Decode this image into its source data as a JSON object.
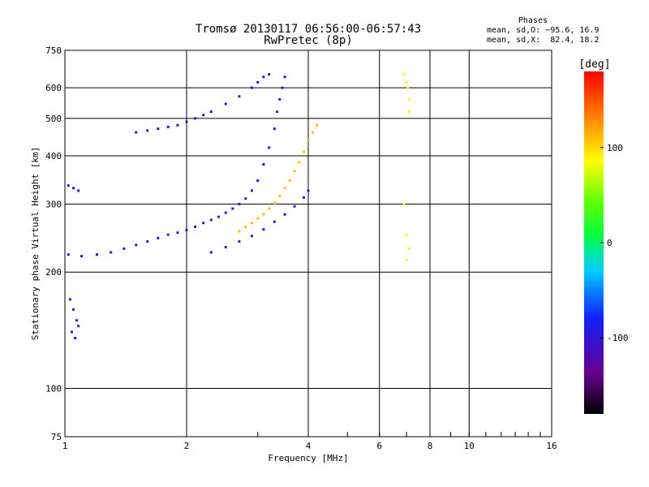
{
  "header": {
    "title": "Tromsø 20130117 06:56:00-06:57:43",
    "subtitle": "RwPretec (8p)"
  },
  "stats": {
    "heading": "Phases",
    "line_o": "mean, sd,O: −95.6, 16.9",
    "line_x": "mean, sd,X:  82.4, 18.2"
  },
  "chart_data": {
    "type": "scatter",
    "xlabel": "Frequency [MHz]",
    "ylabel": "Stationary phase Virtual Height [km]",
    "xscale": "log",
    "yscale": "log",
    "xlim": [
      1,
      16
    ],
    "ylim": [
      75,
      750
    ],
    "x_ticks": [
      1,
      2,
      4,
      6,
      8,
      10,
      16
    ],
    "x_tick_labels": [
      "1",
      "2",
      "4",
      "6",
      "8",
      "10",
      "16"
    ],
    "y_ticks": [
      75,
      100,
      200,
      300,
      400,
      500,
      600,
      750
    ],
    "y_tick_labels": [
      "75",
      "100",
      "200",
      "300",
      "400",
      "500",
      "600",
      "750"
    ],
    "grid": true,
    "colorbar": {
      "label": "[deg]",
      "range": [
        -180,
        180
      ],
      "ticks": [
        100,
        0,
        -100
      ],
      "tick_labels": [
        "100",
        "0",
        "-100"
      ]
    },
    "series": [
      {
        "note_color_deg": -100,
        "points": [
          [
            1.02,
            222
          ],
          [
            1.1,
            220
          ],
          [
            1.2,
            222
          ],
          [
            1.3,
            225
          ],
          [
            1.4,
            230
          ],
          [
            1.5,
            235
          ],
          [
            1.6,
            240
          ],
          [
            1.7,
            245
          ],
          [
            1.8,
            250
          ],
          [
            1.9,
            253
          ],
          [
            2.0,
            257
          ],
          [
            2.1,
            262
          ],
          [
            2.2,
            268
          ],
          [
            2.3,
            273
          ],
          [
            2.4,
            278
          ],
          [
            2.5,
            285
          ],
          [
            2.6,
            292
          ],
          [
            2.7,
            300
          ],
          [
            2.8,
            310
          ],
          [
            2.9,
            325
          ],
          [
            3.0,
            345
          ],
          [
            3.1,
            380
          ],
          [
            3.2,
            420
          ],
          [
            3.3,
            470
          ],
          [
            3.35,
            520
          ],
          [
            3.4,
            560
          ],
          [
            3.45,
            600
          ],
          [
            3.5,
            640
          ]
        ]
      },
      {
        "note_color_deg": -110,
        "points": [
          [
            1.5,
            460
          ],
          [
            1.6,
            465
          ],
          [
            1.7,
            470
          ],
          [
            1.8,
            475
          ],
          [
            1.9,
            480
          ],
          [
            2.0,
            490
          ],
          [
            2.1,
            500
          ],
          [
            2.2,
            510
          ],
          [
            2.3,
            520
          ],
          [
            2.5,
            545
          ],
          [
            2.7,
            570
          ],
          [
            2.9,
            600
          ],
          [
            3.0,
            620
          ],
          [
            3.1,
            640
          ],
          [
            3.2,
            650
          ]
        ]
      },
      {
        "note_color_deg": 110,
        "points": [
          [
            2.7,
            255
          ],
          [
            2.8,
            262
          ],
          [
            2.9,
            268
          ],
          [
            3.0,
            275
          ],
          [
            3.1,
            282
          ],
          [
            3.2,
            292
          ],
          [
            3.3,
            302
          ],
          [
            3.4,
            315
          ],
          [
            3.5,
            330
          ],
          [
            3.6,
            345
          ],
          [
            3.7,
            365
          ],
          [
            3.8,
            385
          ],
          [
            3.9,
            410
          ],
          [
            4.0,
            440
          ],
          [
            4.1,
            460
          ],
          [
            4.2,
            480
          ]
        ]
      },
      {
        "note_color_deg": -95,
        "points": [
          [
            2.3,
            225
          ],
          [
            2.5,
            232
          ],
          [
            2.7,
            240
          ],
          [
            2.9,
            248
          ],
          [
            3.1,
            258
          ],
          [
            3.3,
            270
          ],
          [
            3.5,
            282
          ],
          [
            3.7,
            296
          ],
          [
            3.9,
            312
          ],
          [
            4.0,
            325
          ]
        ]
      },
      {
        "note_color_deg": 90,
        "points": [
          [
            6.9,
            650
          ],
          [
            7.0,
            620
          ],
          [
            7.05,
            600
          ],
          [
            7.1,
            560
          ],
          [
            7.1,
            520
          ],
          [
            6.9,
            300
          ],
          [
            7.0,
            250
          ],
          [
            7.1,
            230
          ],
          [
            7.0,
            215
          ]
        ]
      },
      {
        "note_color_deg": -90,
        "points": [
          [
            1.02,
            335
          ],
          [
            1.05,
            330
          ],
          [
            1.08,
            325
          ],
          [
            1.03,
            170
          ],
          [
            1.05,
            160
          ],
          [
            1.07,
            150
          ],
          [
            1.08,
            145
          ],
          [
            1.04,
            140
          ],
          [
            1.06,
            135
          ]
        ]
      }
    ]
  }
}
